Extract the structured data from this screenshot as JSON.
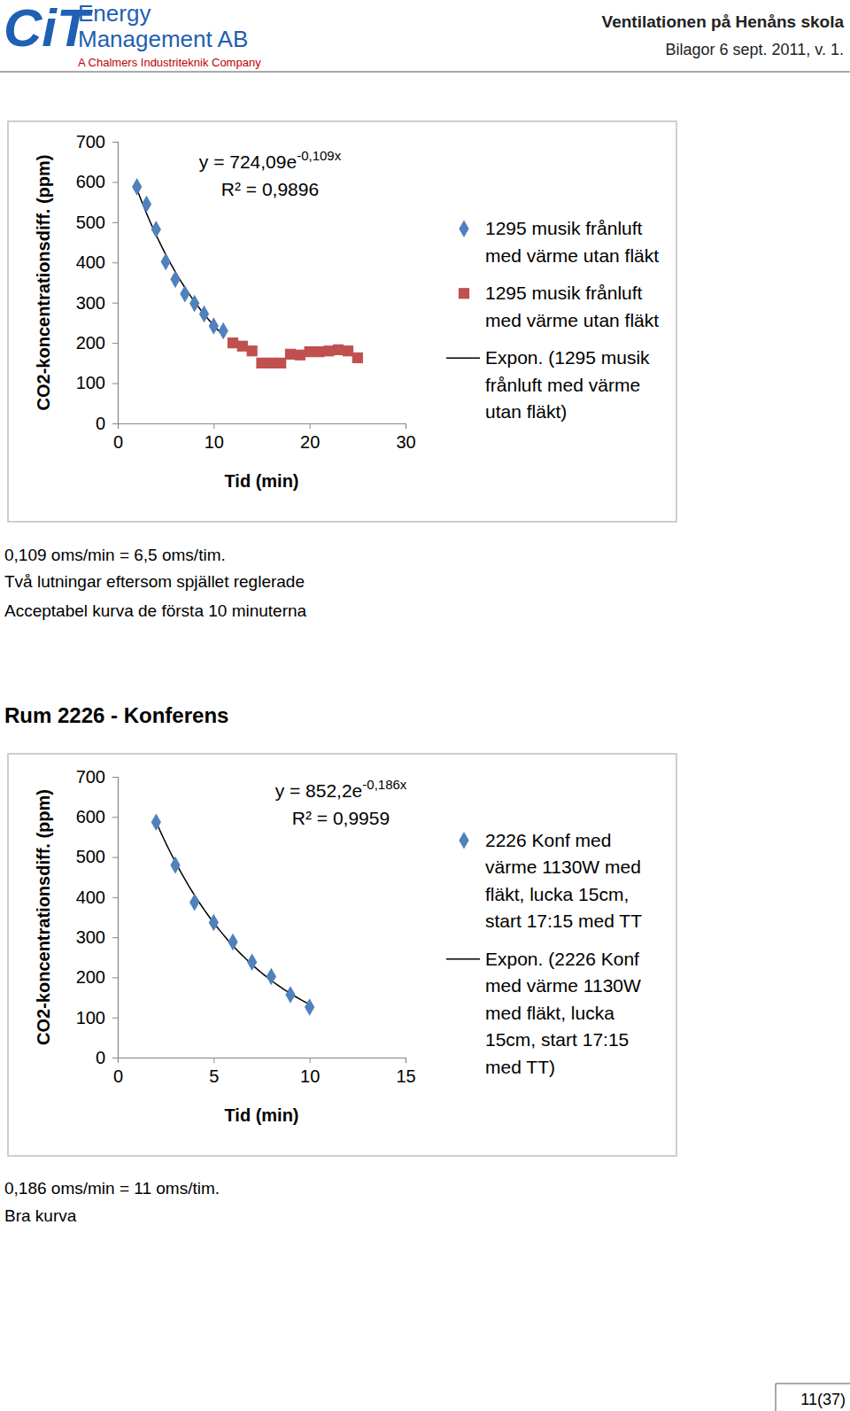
{
  "header": {
    "logo": "CiT",
    "company": [
      "Energy",
      "Management AB"
    ],
    "tagline": "A Chalmers Industriteknik Company",
    "title": "Ventilationen på Henåns skola",
    "subtitle": "Bilagor 6 sept. 2011, v. 1."
  },
  "chart_data": [
    {
      "type": "scatter",
      "xlabel": "Tid (min)",
      "ylabel": "CO2-koncentrationsdiff. (ppm)",
      "xlim": [
        0,
        30
      ],
      "xticks": [
        0,
        10,
        20,
        30
      ],
      "ylim": [
        0,
        700
      ],
      "yticks": [
        0,
        100,
        200,
        300,
        400,
        500,
        600,
        700
      ],
      "grid": false,
      "legend": "right",
      "series": [
        {
          "name": "1295 musik frånluft med värme utan fläkt",
          "color": "#4f81bd",
          "marker": "diamond",
          "x": [
            2,
            3,
            4,
            5,
            6,
            7,
            8,
            9,
            10,
            11
          ],
          "values": [
            588,
            545,
            482,
            402,
            358,
            322,
            298,
            272,
            242,
            230
          ]
        },
        {
          "name": "1295 musik frånluft med värme utan fläkt",
          "color": "#c0504d",
          "marker": "square",
          "x": [
            12,
            13,
            14,
            15,
            16,
            17,
            18,
            19,
            20,
            21,
            22,
            23,
            24,
            25
          ],
          "values": [
            200,
            192,
            180,
            150,
            150,
            150,
            172,
            170,
            178,
            178,
            180,
            183,
            180,
            163
          ]
        }
      ],
      "trendline": {
        "name": "Expon. (1295 musik frånluft med värme utan fläkt)",
        "type": "exponential",
        "color": "#000000",
        "line_style": "solid",
        "a": 724.09,
        "b": -0.109,
        "r2": 0.9896,
        "x_range": [
          2,
          11
        ],
        "equation_base": "y = 724,09e",
        "equation_exponent": "-0,109x",
        "r2_label": "R² = 0,9896"
      }
    },
    {
      "type": "scatter",
      "xlabel": "Tid (min)",
      "ylabel": "CO2-koncentrationsdiff. (ppm)",
      "xlim": [
        0,
        15
      ],
      "xticks": [
        0,
        5,
        10,
        15
      ],
      "ylim": [
        0,
        700
      ],
      "yticks": [
        0,
        100,
        200,
        300,
        400,
        500,
        600,
        700
      ],
      "grid": false,
      "legend": "right",
      "series": [
        {
          "name": "2226 Konf  med värme 1130W med fläkt, lucka 15cm, start 17:15 med TT",
          "color": "#4f81bd",
          "marker": "diamond",
          "x": [
            2,
            3,
            4,
            5,
            6,
            7,
            8,
            9,
            10
          ],
          "values": [
            587,
            480,
            387,
            337,
            288,
            238,
            202,
            157,
            126
          ]
        }
      ],
      "trendline": {
        "name": "Expon. (2226 Konf med värme 1130W med fläkt, lucka 15cm, start 17:15 med TT)",
        "type": "exponential",
        "color": "#000000",
        "line_style": "solid",
        "a": 852.2,
        "b": -0.186,
        "r2": 0.9959,
        "x_range": [
          2,
          10
        ],
        "equation_base": "y = 852,2e",
        "equation_exponent": "-0,186x",
        "r2_label": "R² = 0,9959"
      }
    }
  ],
  "captions": [
    [
      "0,109 oms/min = 6,5 oms/tim.",
      "Två lutningar eftersom spjället reglerade",
      "Acceptabel kurva de första 10 minuterna"
    ],
    [
      "0,186 oms/min = 11 oms/tim.",
      "Bra kurva"
    ]
  ],
  "section_title": "Rum 2226 - Konferens",
  "page_number": "11(37)"
}
